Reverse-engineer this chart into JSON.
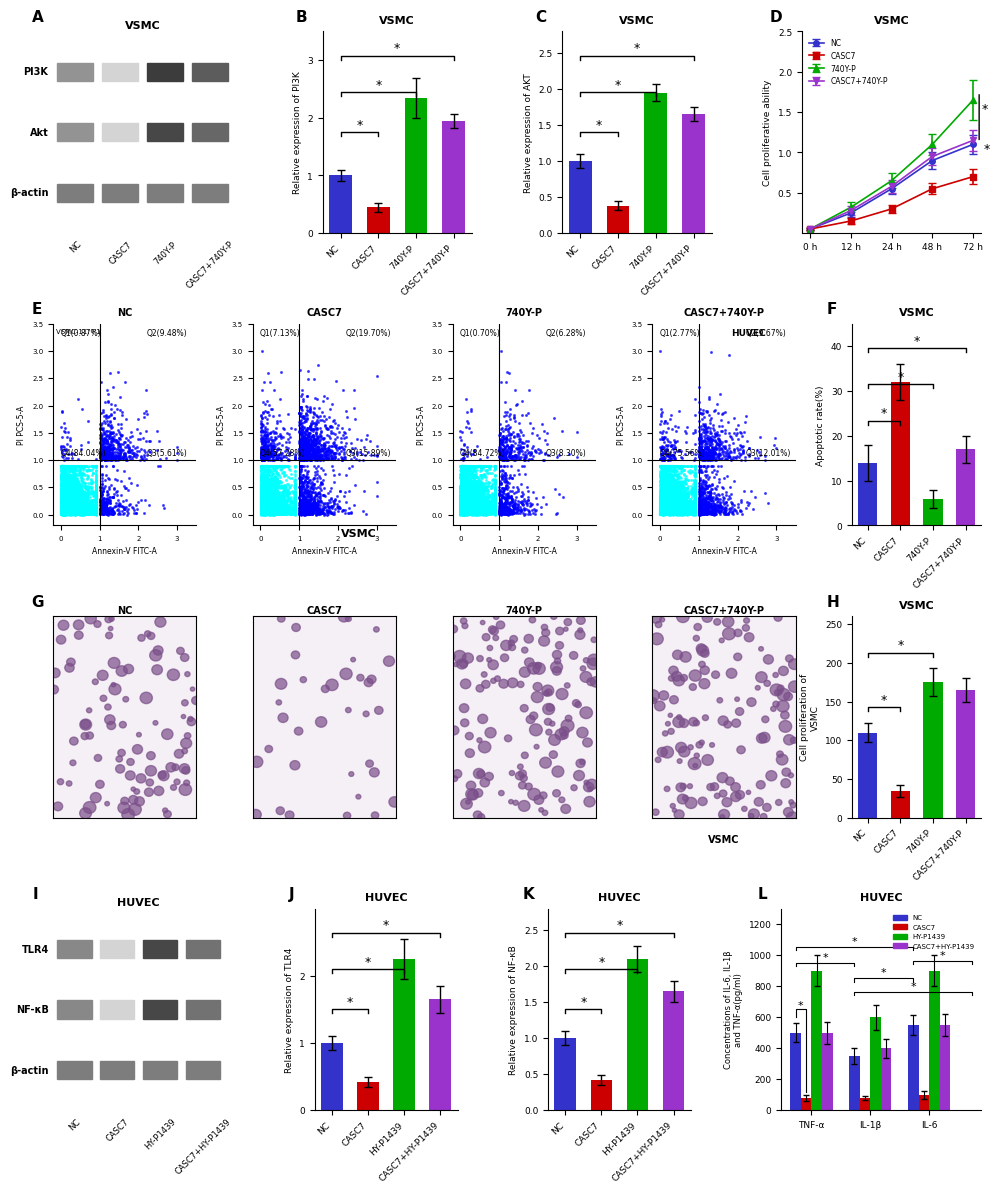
{
  "panel_B": {
    "title": "VSMC",
    "ylabel": "Relative expression of PI3K",
    "categories": [
      "NC",
      "CASC7",
      "740Y-P",
      "CASC7+740Y-P"
    ],
    "values": [
      1.0,
      0.45,
      2.35,
      1.95
    ],
    "errors": [
      0.1,
      0.08,
      0.35,
      0.12
    ],
    "colors": [
      "#3333cc",
      "#cc0000",
      "#00aa00",
      "#9933cc"
    ],
    "ylim": [
      0,
      3.5
    ],
    "yticks": [
      0,
      1,
      2,
      3
    ],
    "sig_pairs": [
      [
        0,
        1,
        "*"
      ],
      [
        0,
        2,
        "*"
      ],
      [
        0,
        3,
        "*"
      ]
    ]
  },
  "panel_C": {
    "title": "VSMC",
    "ylabel": "Relative expression of AKT",
    "categories": [
      "NC",
      "CASC7",
      "740Y-P",
      "CASC7+740Y-P"
    ],
    "values": [
      1.0,
      0.38,
      1.95,
      1.65
    ],
    "errors": [
      0.1,
      0.06,
      0.12,
      0.1
    ],
    "colors": [
      "#3333cc",
      "#cc0000",
      "#00aa00",
      "#9933cc"
    ],
    "ylim": [
      0,
      2.8
    ],
    "yticks": [
      0.0,
      0.5,
      1.0,
      1.5,
      2.0,
      2.5
    ],
    "sig_pairs": [
      [
        0,
        1,
        "*"
      ],
      [
        0,
        2,
        "*"
      ],
      [
        0,
        3,
        "*"
      ]
    ]
  },
  "panel_D": {
    "title": "VSMC",
    "xlabel": "",
    "ylabel": "Cell proliferative ability",
    "xticklabels": [
      "0 h",
      "12 h",
      "24 h",
      "48 h",
      "72 h"
    ],
    "series": {
      "NC": {
        "values": [
          0.05,
          0.25,
          0.55,
          0.9,
          1.1
        ],
        "errors": [
          0.01,
          0.05,
          0.07,
          0.1,
          0.12
        ],
        "color": "#3333cc",
        "marker": "o"
      },
      "CASC7": {
        "values": [
          0.05,
          0.15,
          0.3,
          0.55,
          0.7
        ],
        "errors": [
          0.01,
          0.04,
          0.05,
          0.07,
          0.09
        ],
        "color": "#cc0000",
        "marker": "s"
      },
      "740Y-P": {
        "values": [
          0.05,
          0.32,
          0.65,
          1.1,
          1.65
        ],
        "errors": [
          0.01,
          0.06,
          0.09,
          0.13,
          0.25
        ],
        "color": "#00aa00",
        "marker": "^"
      },
      "CASC7+740Y-P": {
        "values": [
          0.05,
          0.28,
          0.58,
          0.95,
          1.15
        ],
        "errors": [
          0.01,
          0.05,
          0.08,
          0.11,
          0.13
        ],
        "color": "#9933cc",
        "marker": "v"
      }
    },
    "ylim": [
      0,
      2.5
    ],
    "yticks": [
      0.5,
      1.0,
      1.5,
      2.0,
      2.5
    ]
  },
  "panel_F": {
    "title": "VSMC",
    "ylabel": "Apoptotic rate(%)",
    "categories": [
      "NC",
      "CASC7",
      "740Y-P",
      "CASC7+740Y-P"
    ],
    "values": [
      14,
      32,
      6,
      17
    ],
    "errors": [
      4,
      4,
      2,
      3
    ],
    "colors": [
      "#3333cc",
      "#cc0000",
      "#00aa00",
      "#9933cc"
    ],
    "ylim": [
      0,
      45
    ],
    "yticks": [
      0,
      10,
      20,
      30,
      40
    ],
    "sig_pairs": [
      [
        0,
        1,
        "*"
      ],
      [
        0,
        2,
        "*"
      ],
      [
        0,
        3,
        "*"
      ]
    ]
  },
  "panel_H": {
    "title": "VSMC",
    "ylabel": "Cell proliferation of\nVSMC",
    "categories": [
      "NC",
      "CASC7",
      "740Y-P",
      "CASC7+740Y-P"
    ],
    "values": [
      110,
      35,
      175,
      165
    ],
    "errors": [
      12,
      8,
      18,
      15
    ],
    "colors": [
      "#3333cc",
      "#cc0000",
      "#00aa00",
      "#9933cc"
    ],
    "ylim": [
      0,
      260
    ],
    "yticks": [
      0,
      50,
      100,
      150,
      200,
      250
    ],
    "sig_pairs": [
      [
        0,
        1,
        "*"
      ],
      [
        0,
        2,
        "*"
      ]
    ]
  },
  "panel_J": {
    "title": "HUVEC",
    "ylabel": "Relative expression of TLR4",
    "categories": [
      "NC",
      "CASC7",
      "HY-P1439",
      "CASC7+HY-P1439"
    ],
    "values": [
      1.0,
      0.42,
      2.25,
      1.65
    ],
    "errors": [
      0.1,
      0.08,
      0.3,
      0.2
    ],
    "colors": [
      "#3333cc",
      "#cc0000",
      "#00aa00",
      "#9933cc"
    ],
    "ylim": [
      0,
      3.0
    ],
    "yticks": [
      0,
      1,
      2
    ],
    "sig_pairs": [
      [
        0,
        1,
        "*"
      ],
      [
        0,
        2,
        "*"
      ],
      [
        0,
        3,
        "*"
      ]
    ]
  },
  "panel_K": {
    "title": "HUVEC",
    "ylabel": "Relative expression of NF-κB",
    "categories": [
      "NC",
      "CASC7",
      "HY-P1439",
      "CASC7+HY-P1439"
    ],
    "values": [
      1.0,
      0.42,
      2.1,
      1.65
    ],
    "errors": [
      0.1,
      0.07,
      0.18,
      0.15
    ],
    "colors": [
      "#3333cc",
      "#cc0000",
      "#00aa00",
      "#9933cc"
    ],
    "ylim": [
      0,
      2.8
    ],
    "yticks": [
      0.0,
      0.5,
      1.0,
      1.5,
      2.0,
      2.5
    ],
    "sig_pairs": [
      [
        0,
        1,
        "*"
      ],
      [
        0,
        2,
        "*"
      ],
      [
        0,
        3,
        "*"
      ]
    ]
  },
  "panel_L": {
    "title": "HUVEC",
    "ylabel": "Concentrations of IL-6, IL-1β\nand TNF-α(pg/ml)",
    "groups": [
      "TNF-α",
      "IL-1β",
      "IL-6"
    ],
    "series": {
      "NC": {
        "values": [
          500,
          350,
          550
        ],
        "errors": [
          60,
          50,
          65
        ],
        "color": "#3333cc"
      },
      "CASC7": {
        "values": [
          80,
          80,
          100
        ],
        "errors": [
          20,
          15,
          25
        ],
        "color": "#cc0000"
      },
      "HY-P1439": {
        "values": [
          900,
          600,
          900
        ],
        "errors": [
          100,
          80,
          100
        ],
        "color": "#00aa00"
      },
      "CASC7+HY-P1439": {
        "values": [
          500,
          400,
          550
        ],
        "errors": [
          70,
          60,
          70
        ],
        "color": "#9933cc"
      }
    },
    "ylim": [
      0,
      1300
    ],
    "yticks": [
      0,
      200,
      400,
      600,
      800,
      1000,
      1200
    ],
    "legend_labels": [
      "NC",
      "CASC7",
      "HY-P1439",
      "CASC7+HY-P1439"
    ]
  },
  "colors": {
    "NC": "#3333cc",
    "CASC7": "#cc0000",
    "740Y-P": "#00aa00",
    "CASC7+740Y-P": "#9933cc",
    "HY-P1439": "#00aa00",
    "CASC7+HY-P1439": "#9933cc"
  },
  "panel_labels": [
    "A",
    "B",
    "C",
    "D",
    "E",
    "F",
    "G",
    "H",
    "I",
    "J",
    "K",
    "L"
  ],
  "westernblot_labels_VSMC": [
    "NC",
    "CASC7",
    "740Y-P",
    "CASC7+740Y-P"
  ],
  "westernblot_bands_VSMC": [
    "PI3K",
    "Akt",
    "β-actin"
  ],
  "westernblot_labels_HUVEC": [
    "NC",
    "CASC7",
    "HY-P1439",
    "CASC7+HY-P1439"
  ],
  "westernblot_bands_HUVEC": [
    "TLR4",
    "NF-κB",
    "β-actin"
  ]
}
